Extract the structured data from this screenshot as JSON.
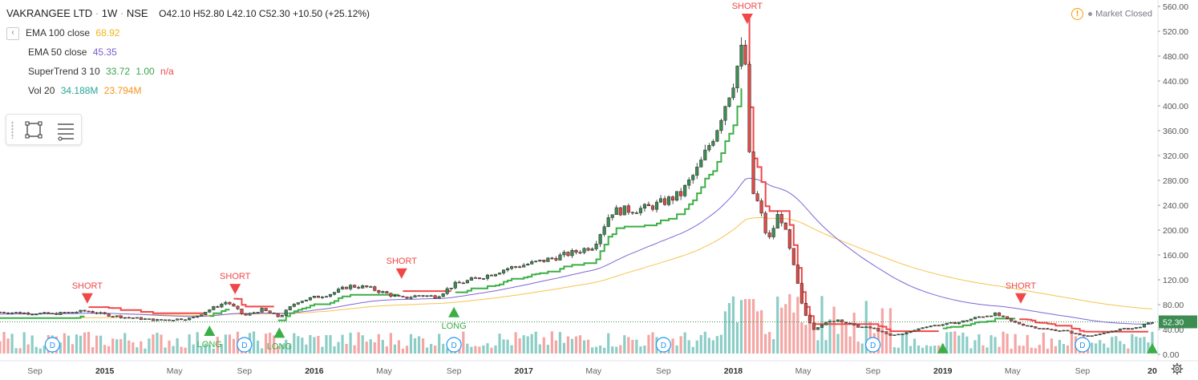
{
  "header": {
    "symbol": "VAKRANGEE LTD",
    "interval": "1W",
    "exchange": "NSE",
    "ohlc": "O42.10 H52.80 L42.10 C52.30 +10.50 (+25.12%)"
  },
  "indicators": [
    {
      "label": "EMA 100 close",
      "value": "68.92",
      "color": "#f3b518"
    },
    {
      "label": "EMA 50 close",
      "value": "45.35",
      "color": "#7b5fd1"
    },
    {
      "label": "SuperTrend 3 10",
      "value": "33.72",
      "value2": "1.00",
      "value3": "n/a",
      "color": "#3aa54b",
      "color2": "#3aa54b",
      "color3": "#f04848"
    },
    {
      "label": "Vol 20",
      "value": "34.188M",
      "value2": "23.794M",
      "color": "#26a69a",
      "color2": "#f7931a"
    }
  ],
  "status": {
    "market": "Market Closed",
    "warning_icon": "warning-icon"
  },
  "colors": {
    "up": "#3d8d52",
    "down": "#e04b47",
    "ema100": "#f6c34f",
    "ema50": "#7f65d6",
    "st_up": "#3cae46",
    "st_down": "#f04848",
    "vol_up": "#8ccdc6",
    "vol_down": "#f4a6a4",
    "price_line": "#3d8d52"
  },
  "chart_data": {
    "type": "candlestick",
    "y_ticks": [
      "560.00",
      "520.00",
      "480.00",
      "440.00",
      "400.00",
      "360.00",
      "320.00",
      "280.00",
      "240.00",
      "200.00",
      "160.00",
      "120.00",
      "80.00",
      "40.00",
      "0.00"
    ],
    "y_range": [
      0,
      560
    ],
    "last_price": "52.30",
    "x_ticks": [
      "Sep",
      "2015",
      "May",
      "Sep",
      "2016",
      "May",
      "Sep",
      "2017",
      "May",
      "Sep",
      "2018",
      "May",
      "Sep",
      "2019",
      "May",
      "Sep",
      "20"
    ],
    "x_start": "2014-07",
    "x_end": "2020-01",
    "price_anchors": [
      [
        "2014-07",
        68
      ],
      [
        "2014-10",
        65
      ],
      [
        "2014-12",
        70
      ],
      [
        "2015-01",
        64
      ],
      [
        "2015-02",
        60
      ],
      [
        "2015-04",
        55
      ],
      [
        "2015-06",
        58
      ],
      [
        "2015-07",
        72
      ],
      [
        "2015-08",
        85
      ],
      [
        "2015-09",
        62
      ],
      [
        "2015-10",
        72
      ],
      [
        "2015-11",
        60
      ],
      [
        "2015-12",
        85
      ],
      [
        "2016-02",
        98
      ],
      [
        "2016-03",
        110
      ],
      [
        "2016-04",
        108
      ],
      [
        "2016-06",
        90
      ],
      [
        "2016-07",
        95
      ],
      [
        "2016-08",
        93
      ],
      [
        "2016-09",
        112
      ],
      [
        "2016-11",
        128
      ],
      [
        "2016-12",
        138
      ],
      [
        "2017-02",
        150
      ],
      [
        "2017-04",
        165
      ],
      [
        "2017-05",
        175
      ],
      [
        "2017-06",
        230
      ],
      [
        "2017-08",
        235
      ],
      [
        "2017-09",
        245
      ],
      [
        "2017-10",
        258
      ],
      [
        "2017-11",
        300
      ],
      [
        "2017-12",
        360
      ],
      [
        "2018-01",
        440
      ],
      [
        "2018-01-20",
        505
      ],
      [
        "2018-02",
        268
      ],
      [
        "2018-02-15",
        240
      ],
      [
        "2018-03",
        180
      ],
      [
        "2018-03-20",
        230
      ],
      [
        "2018-04",
        195
      ],
      [
        "2018-04-20",
        120
      ],
      [
        "2018-05",
        70
      ],
      [
        "2018-05-20",
        40
      ],
      [
        "2018-06",
        48
      ],
      [
        "2018-07",
        56
      ],
      [
        "2018-08",
        45
      ],
      [
        "2018-09",
        42
      ],
      [
        "2018-10",
        30
      ],
      [
        "2018-11",
        35
      ],
      [
        "2018-12",
        45
      ],
      [
        "2019-01",
        48
      ],
      [
        "2019-02",
        52
      ],
      [
        "2019-03",
        60
      ],
      [
        "2019-04",
        65
      ],
      [
        "2019-05",
        52
      ],
      [
        "2019-06",
        45
      ],
      [
        "2019-07",
        40
      ],
      [
        "2019-08",
        38
      ],
      [
        "2019-09",
        30
      ],
      [
        "2019-10",
        32
      ],
      [
        "2019-11",
        40
      ],
      [
        "2019-12",
        42
      ],
      [
        "2020-01",
        52
      ]
    ],
    "signals": [
      {
        "label": "SHORT",
        "type": "short",
        "date": "2014-12",
        "price": 70
      },
      {
        "label": "SHORT",
        "type": "short",
        "date": "2015-08-15",
        "price": 85
      },
      {
        "label": "SHORT",
        "type": "short",
        "date": "2016-06",
        "price": 110
      },
      {
        "label": "SHORT",
        "type": "short",
        "date": "2018-01-25",
        "price": 520
      },
      {
        "label": "SHORT",
        "type": "short",
        "date": "2019-05-15",
        "price": 70
      },
      {
        "label": "LONG",
        "type": "long",
        "date": "2015-07",
        "price": 58
      },
      {
        "label": "LONG",
        "type": "long",
        "date": "2015-11",
        "price": 55
      },
      {
        "label": "LONG",
        "type": "long",
        "date": "2016-09",
        "price": 88
      },
      {
        "label": "",
        "type": "long",
        "date": "2019-01",
        "price": 30
      },
      {
        "label": "",
        "type": "long",
        "date": "2020-01",
        "price": 30
      }
    ],
    "dividend_marker": "D",
    "dividends": [
      "2014-10",
      "2015-09",
      "2016-09",
      "2017-09",
      "2018-09",
      "2019-09"
    ]
  }
}
